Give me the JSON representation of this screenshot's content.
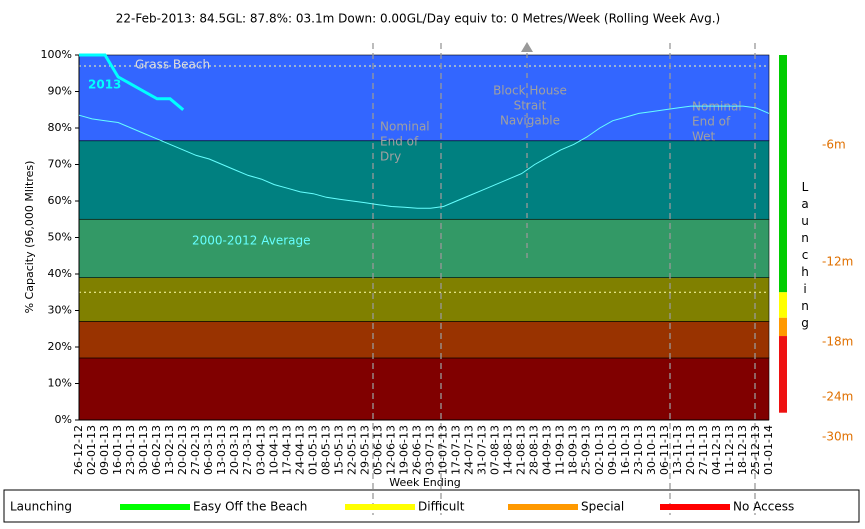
{
  "chart_data": {
    "type": "line",
    "title": "22-Feb-2013: 84.5GL: 87.8%: 03.1m Down: 0.00GL/Day equiv to: 0 Metres/Week (Rolling Week Avg.)",
    "x_label": "Week Ending",
    "y_label": "% Capacity (96,000 Mlitres)",
    "categories": [
      "26-12-12",
      "02-01-13",
      "09-01-13",
      "16-01-13",
      "23-01-13",
      "30-01-13",
      "06-02-13",
      "13-02-13",
      "20-02-13",
      "27-02-13",
      "06-03-13",
      "13-03-13",
      "20-03-13",
      "27-03-13",
      "03-04-13",
      "10-04-13",
      "17-04-13",
      "24-04-13",
      "01-05-13",
      "08-05-13",
      "15-05-13",
      "22-05-13",
      "29-05-13",
      "05-06-13",
      "12-06-13",
      "19-06-13",
      "26-06-13",
      "03-07-13",
      "10-07-13",
      "17-07-13",
      "24-07-13",
      "31-07-13",
      "07-08-13",
      "14-08-13",
      "21-08-13",
      "28-08-13",
      "04-09-13",
      "11-09-13",
      "18-09-13",
      "25-09-13",
      "02-10-13",
      "09-10-13",
      "16-10-13",
      "23-10-13",
      "30-10-13",
      "06-11-13",
      "13-11-13",
      "20-11-13",
      "27-11-13",
      "04-12-13",
      "11-12-13",
      "18-12-13",
      "25-12-13",
      "01-01-14"
    ],
    "series": [
      {
        "name": "2000-2012 Average",
        "color": "#66ffff",
        "width": 1,
        "values": [
          83.5,
          82.5,
          82,
          81.5,
          80,
          78.5,
          77,
          75.5,
          74,
          72.5,
          71.5,
          70,
          68.5,
          67,
          66,
          64.5,
          63.5,
          62.5,
          62,
          61,
          60.5,
          60,
          59.5,
          59,
          58.5,
          58.3,
          58,
          58,
          58.5,
          60,
          61.5,
          63,
          64.5,
          66,
          67.5,
          70,
          72,
          74,
          75.5,
          77.5,
          80,
          82,
          83,
          84,
          84.5,
          85,
          85.5,
          86,
          86,
          86,
          86,
          86,
          85.5,
          84
        ]
      },
      {
        "name": "2013",
        "color": "#00ffff",
        "width": 3,
        "values": [
          100,
          100,
          100,
          94,
          92,
          90,
          88,
          88,
          85,
          null,
          null,
          null,
          null,
          null,
          null,
          null,
          null,
          null,
          null,
          null,
          null,
          null,
          null,
          null,
          null,
          null,
          null,
          null,
          null,
          null,
          null,
          null,
          null,
          null,
          null,
          null,
          null,
          null,
          null,
          null,
          null,
          null,
          null,
          null,
          null,
          null,
          null,
          null,
          null,
          null,
          null,
          null,
          null,
          null
        ]
      }
    ],
    "ylim": [
      0,
      100
    ],
    "yticks": [
      {
        "value": 0,
        "label": "0%"
      },
      {
        "value": 10,
        "label": "10%"
      },
      {
        "value": 20,
        "label": "20%"
      },
      {
        "value": 30,
        "label": "30%"
      },
      {
        "value": 40,
        "label": "40%"
      },
      {
        "value": 50,
        "label": "50%"
      },
      {
        "value": 60,
        "label": "60%"
      },
      {
        "value": 70,
        "label": "70%"
      },
      {
        "value": 80,
        "label": "80%"
      },
      {
        "value": 90,
        "label": "90%"
      },
      {
        "value": 100,
        "label": "100%"
      }
    ],
    "bands": [
      {
        "from": 0,
        "to": 17,
        "color": "#800000"
      },
      {
        "from": 17,
        "to": 27,
        "color": "#993300"
      },
      {
        "from": 27,
        "to": 39,
        "color": "#808000"
      },
      {
        "from": 39,
        "to": 55,
        "color": "#339966"
      },
      {
        "from": 55,
        "to": 76.5,
        "color": "#008080"
      },
      {
        "from": 76.5,
        "to": 100,
        "color": "#3366ff"
      }
    ],
    "reference_lines": [
      97,
      35
    ],
    "annotations": [
      {
        "lines": [
          "Grass Beach"
        ]
      },
      {
        "lines": [
          "Nominal",
          "End of",
          "Dry"
        ]
      },
      {
        "lines": [
          "Block House",
          "Strait",
          "Navigable"
        ]
      },
      {
        "lines": [
          "Nominal",
          "End of",
          "Wet"
        ]
      }
    ],
    "launching_scale": [
      {
        "from": 35,
        "to": 100,
        "color": "#00cc00"
      },
      {
        "from": 28,
        "to": 35,
        "color": "#ffff00"
      },
      {
        "from": 23,
        "to": 28,
        "color": "#ff9900"
      },
      {
        "from": 2,
        "to": 23,
        "color": "#ee1111"
      }
    ],
    "launching_title": "Launching",
    "depth_labels": [
      "-6m",
      "-12m",
      "-18m",
      "-24m",
      "-30m"
    ],
    "legend_title": "Launching",
    "legend": [
      {
        "label": "Easy Off the Beach",
        "color": "#00ff00"
      },
      {
        "label": "Difficult",
        "color": "#ffff00"
      },
      {
        "label": "Special",
        "color": "#ff9900"
      },
      {
        "label": "No Access",
        "color": "#ff0000"
      }
    ]
  }
}
